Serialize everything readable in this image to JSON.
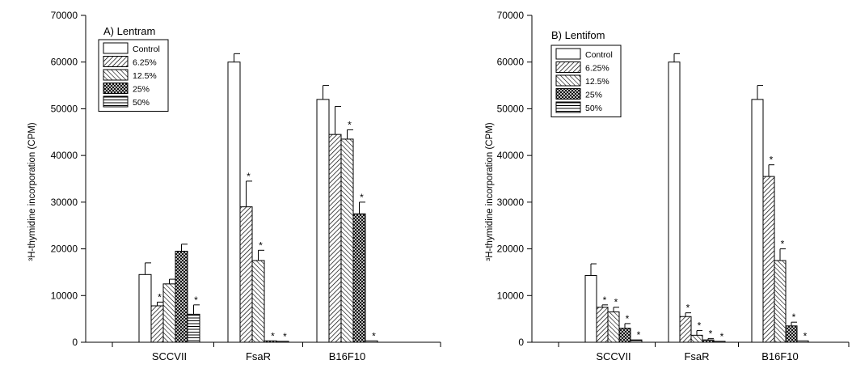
{
  "chart_data": [
    {
      "type": "bar",
      "title": "A) Lentram",
      "ylabel": "³H-thymidine incorporation (CPM)",
      "xlabel": "",
      "ylim": [
        0,
        70000
      ],
      "yticks": [
        0,
        10000,
        20000,
        30000,
        40000,
        50000,
        60000,
        70000
      ],
      "categories": [
        "SCCVII",
        "FsaR",
        "B16F10"
      ],
      "legend_position": "top-left",
      "series": [
        {
          "name": "Control",
          "values": [
            14500,
            60000,
            52000
          ],
          "errors": [
            2500,
            1800,
            3000
          ],
          "significant": [
            false,
            false,
            false
          ]
        },
        {
          "name": "6.25%",
          "values": [
            7800,
            29000,
            44500
          ],
          "errors": [
            800,
            5500,
            6000
          ],
          "significant": [
            true,
            true,
            false
          ]
        },
        {
          "name": "12.5%",
          "values": [
            12500,
            17500,
            43500
          ],
          "errors": [
            1000,
            2200,
            2000
          ],
          "significant": [
            false,
            true,
            true
          ]
        },
        {
          "name": "25%",
          "values": [
            19500,
            300,
            27500
          ],
          "errors": [
            1500,
            0,
            2500
          ],
          "significant": [
            false,
            true,
            true
          ]
        },
        {
          "name": "50%",
          "values": [
            6000,
            200,
            300
          ],
          "errors": [
            2000,
            0,
            0
          ],
          "significant": [
            true,
            true,
            true
          ]
        }
      ]
    },
    {
      "type": "bar",
      "title": "B) Lentifom",
      "ylabel": "³H-thymidine incorporation (CPM)",
      "xlabel": "",
      "ylim": [
        0,
        70000
      ],
      "yticks": [
        0,
        10000,
        20000,
        30000,
        40000,
        50000,
        60000,
        70000
      ],
      "categories": [
        "SCCVII",
        "FsaR",
        "B16F10"
      ],
      "legend_position": "top-left",
      "series": [
        {
          "name": "Control",
          "values": [
            14300,
            60000,
            52000
          ],
          "errors": [
            2500,
            1800,
            3000
          ],
          "significant": [
            false,
            false,
            false
          ]
        },
        {
          "name": "6.25%",
          "values": [
            7500,
            5500,
            35500
          ],
          "errors": [
            500,
            800,
            2500
          ],
          "significant": [
            true,
            true,
            true
          ]
        },
        {
          "name": "12.5%",
          "values": [
            6500,
            1500,
            17500
          ],
          "errors": [
            1000,
            1000,
            2500
          ],
          "significant": [
            true,
            true,
            true
          ]
        },
        {
          "name": "25%",
          "values": [
            3000,
            500,
            3500
          ],
          "errors": [
            1000,
            300,
            800
          ],
          "significant": [
            true,
            true,
            true
          ]
        },
        {
          "name": "50%",
          "values": [
            500,
            200,
            300
          ],
          "errors": [
            0,
            0,
            0
          ],
          "significant": [
            true,
            true,
            true
          ]
        }
      ]
    }
  ]
}
